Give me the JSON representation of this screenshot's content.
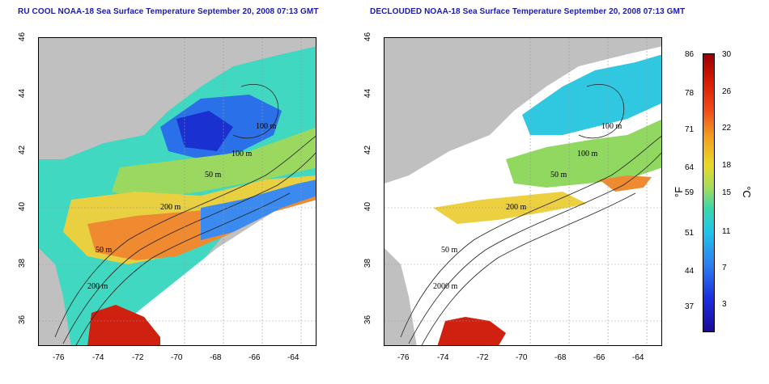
{
  "left_panel": {
    "title": "RU COOL NOAA-18 Sea Surface Temperature September 20, 2008 07:13 GMT",
    "x_ticks": [
      "-76",
      "-74",
      "-72",
      "-70",
      "-68",
      "-66",
      "-64"
    ],
    "y_ticks": [
      "46",
      "44",
      "42",
      "40",
      "38",
      "36"
    ],
    "contour_labels": [
      "100 m",
      "100 m",
      "50 m",
      "200 m",
      "50 m",
      "200 m"
    ]
  },
  "right_panel": {
    "title": "DECLOUDED NOAA-18 Sea Surface Temperature September 20, 2008 07:13 GMT",
    "x_ticks": [
      "-76",
      "-74",
      "-72",
      "-70",
      "-68",
      "-66",
      "-64"
    ],
    "y_ticks": [
      "46",
      "44",
      "42",
      "40",
      "38",
      "36"
    ],
    "contour_labels": [
      "100 m",
      "100 m",
      "50 m",
      "200 m",
      "50 m",
      "2000 m"
    ]
  },
  "colorbar": {
    "fahrenheit_ticks": [
      "86",
      "78",
      "71",
      "64",
      "59",
      "51",
      "44",
      "37"
    ],
    "celsius_ticks": [
      "30",
      "26",
      "22",
      "18",
      "15",
      "11",
      "7",
      "3"
    ],
    "unit_f": "°F",
    "unit_c": "°C",
    "range_c": [
      0,
      30
    ],
    "colors": [
      "#9a0000",
      "#d81c00",
      "#f04a1a",
      "#f3a020",
      "#e8d828",
      "#a6dc5a",
      "#38d6b0",
      "#22c4e8",
      "#2c7ef0",
      "#1a30e0",
      "#1a0a98"
    ]
  }
}
